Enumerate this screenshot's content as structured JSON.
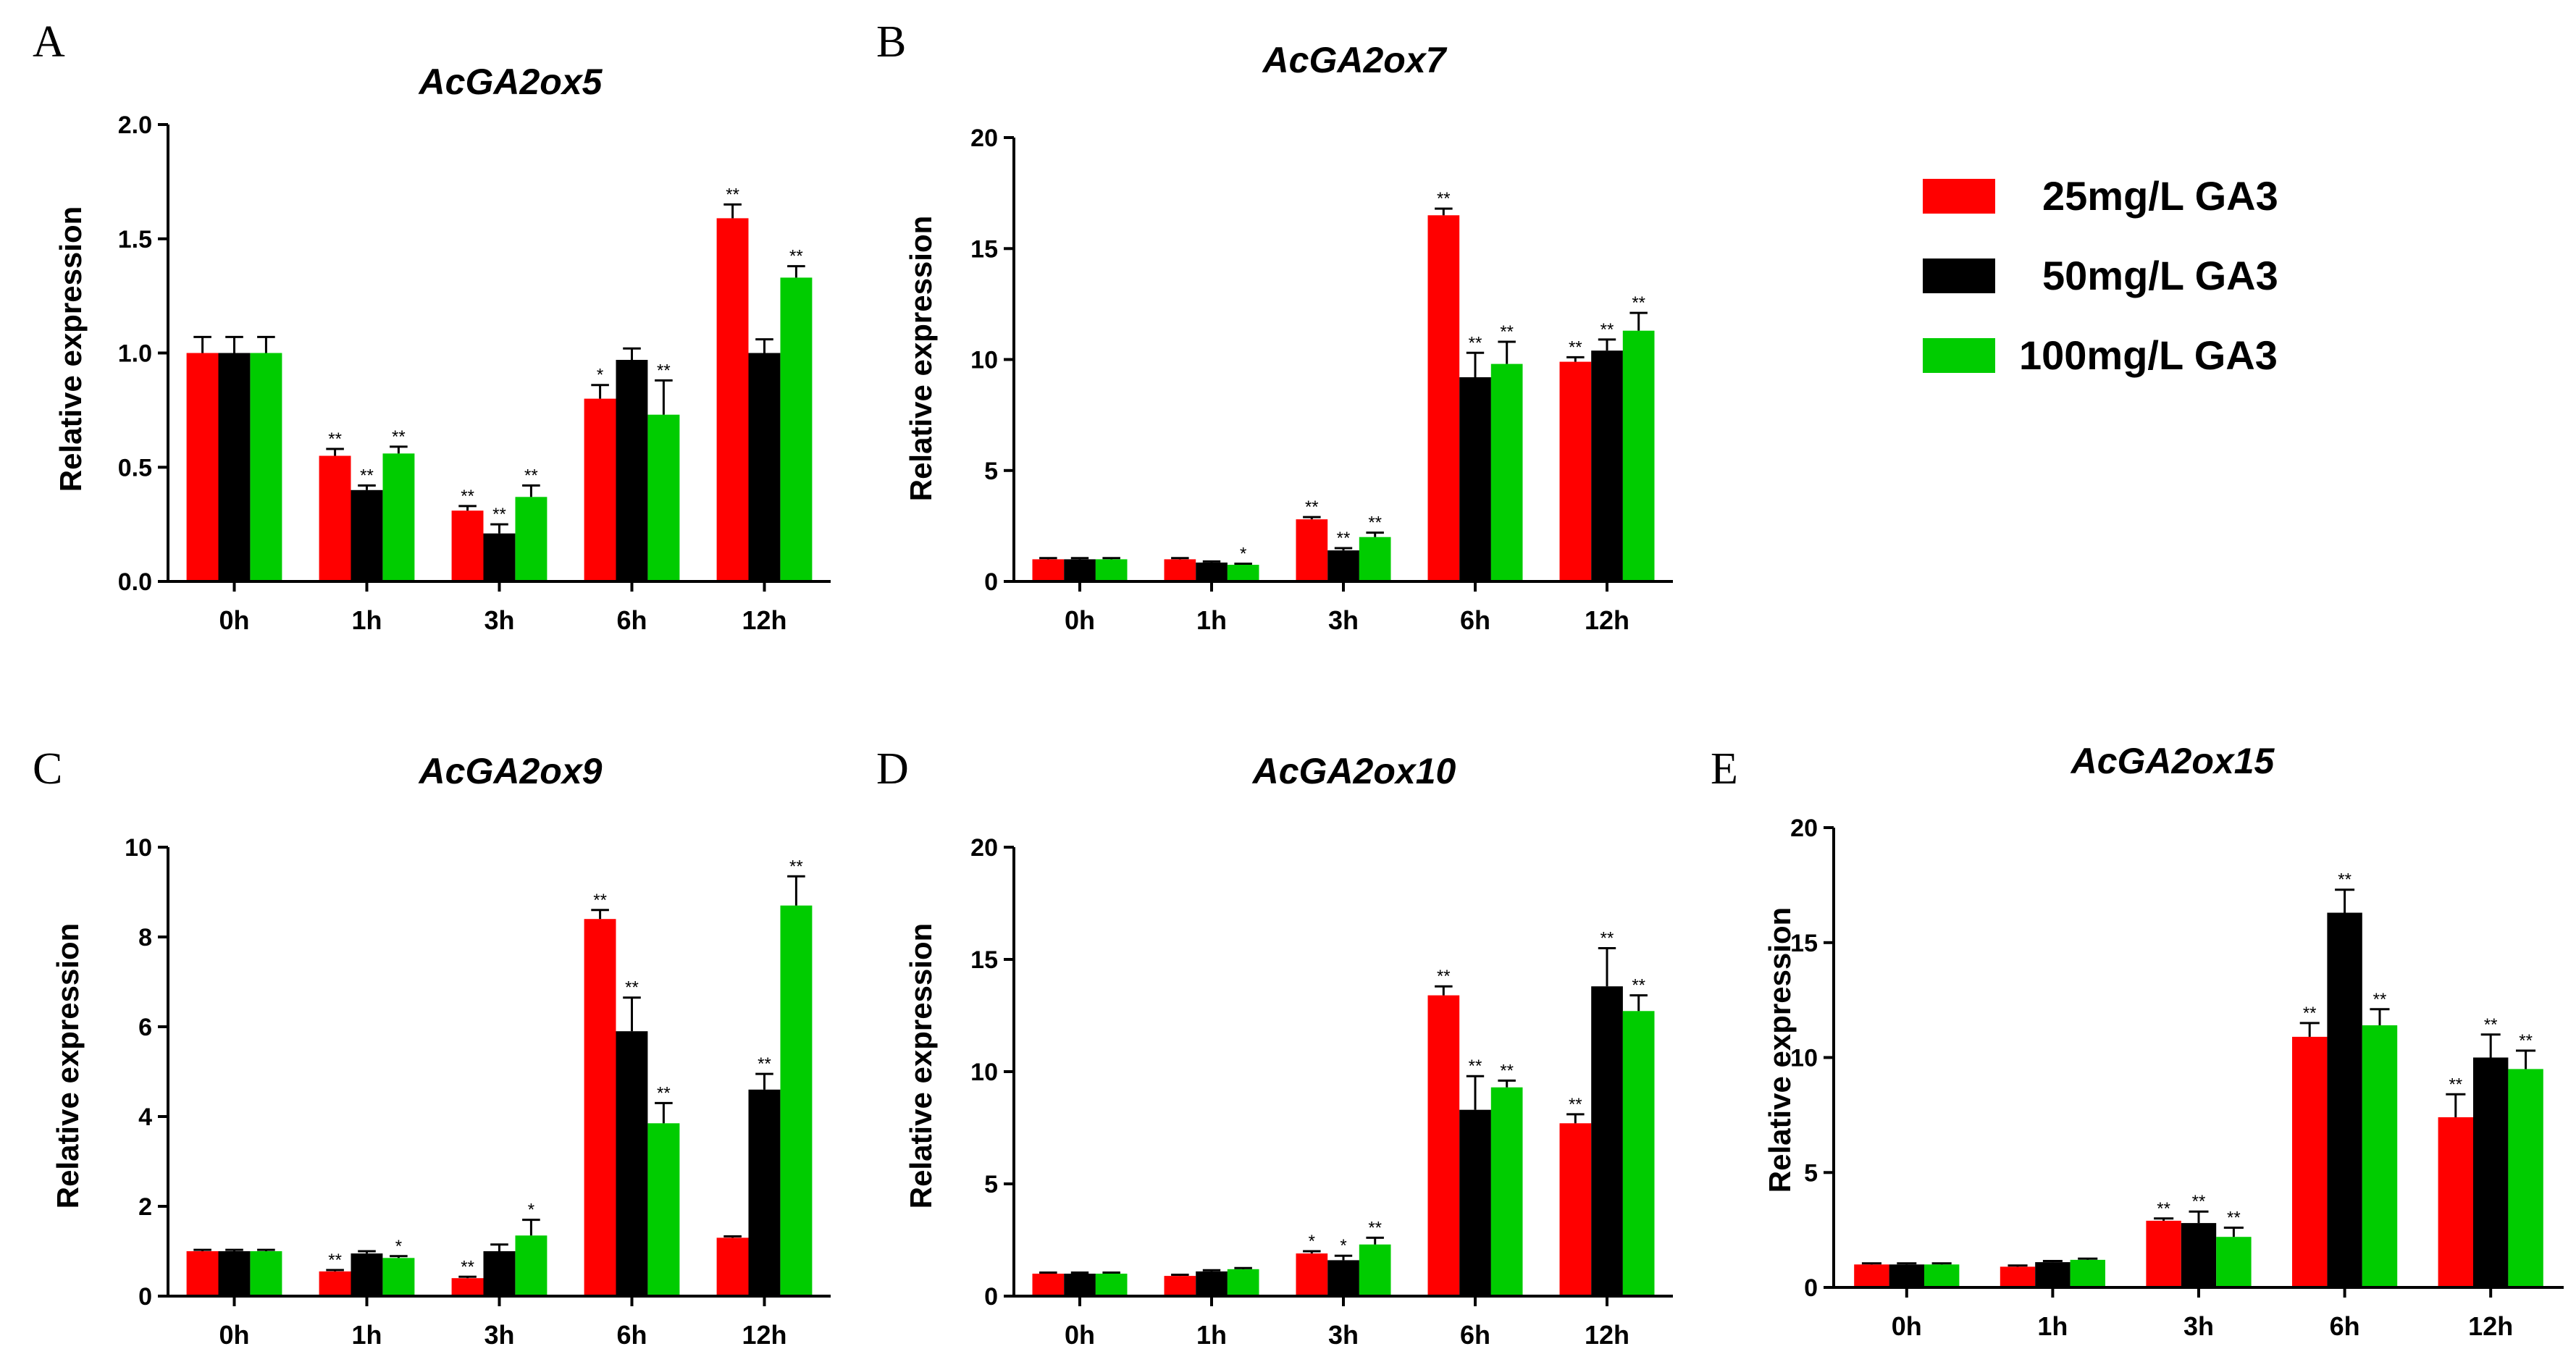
{
  "colors": {
    "series": [
      "#ff0000",
      "#000000",
      "#00cc00"
    ],
    "axis": "#000000",
    "background": "#ffffff"
  },
  "legend": {
    "items": [
      {
        "label": "25mg/L GA3",
        "color": "#ff0000"
      },
      {
        "label": "50mg/L GA3",
        "color": "#000000"
      },
      {
        "label": "100mg/L GA3",
        "color": "#00cc00"
      }
    ]
  },
  "chart_data": [
    {
      "panel": "A",
      "type": "bar",
      "title": "AcGA2ox5",
      "xlabel": "",
      "ylabel": "Relative expression",
      "categories": [
        "0h",
        "1h",
        "3h",
        "6h",
        "12h"
      ],
      "ylim": [
        0,
        2.0
      ],
      "yticks": [
        0.0,
        0.5,
        1.0,
        1.5,
        2.0
      ],
      "ytick_labels": [
        "0.0",
        "0.5",
        "1.0",
        "1.5",
        "2.0"
      ],
      "series": [
        {
          "name": "25mg/L GA3",
          "values": [
            1.0,
            0.55,
            0.31,
            0.8,
            1.59
          ],
          "errors": [
            0.07,
            0.03,
            0.02,
            0.06,
            0.06
          ],
          "sig": [
            "",
            "**",
            "**",
            "*",
            "**"
          ]
        },
        {
          "name": "50mg/L GA3",
          "values": [
            1.0,
            0.4,
            0.21,
            0.97,
            1.0
          ],
          "errors": [
            0.07,
            0.02,
            0.04,
            0.05,
            0.06
          ],
          "sig": [
            "",
            "**",
            "**",
            "",
            ""
          ]
        },
        {
          "name": "100mg/L GA3",
          "values": [
            1.0,
            0.56,
            0.37,
            0.73,
            1.33
          ],
          "errors": [
            0.07,
            0.03,
            0.05,
            0.15,
            0.05
          ],
          "sig": [
            "",
            "**",
            "**",
            "**",
            "**"
          ]
        }
      ]
    },
    {
      "panel": "B",
      "type": "bar",
      "title": "AcGA2ox7",
      "xlabel": "",
      "ylabel": "Relative expression",
      "categories": [
        "0h",
        "1h",
        "3h",
        "6h",
        "12h"
      ],
      "ylim": [
        0,
        20
      ],
      "yticks": [
        0,
        5,
        10,
        15,
        20
      ],
      "ytick_labels": [
        "0",
        "5",
        "10",
        "15",
        "20"
      ],
      "series": [
        {
          "name": "25mg/L GA3",
          "values": [
            1.0,
            1.0,
            2.8,
            16.5,
            9.9
          ],
          "errors": [
            0.05,
            0.05,
            0.1,
            0.3,
            0.2
          ],
          "sig": [
            "",
            "",
            "**",
            "**",
            "**"
          ]
        },
        {
          "name": "50mg/L GA3",
          "values": [
            1.0,
            0.85,
            1.4,
            9.2,
            10.4
          ],
          "errors": [
            0.05,
            0.05,
            0.1,
            1.1,
            0.5
          ],
          "sig": [
            "",
            "",
            "**",
            "**",
            "**"
          ]
        },
        {
          "name": "100mg/L GA3",
          "values": [
            1.0,
            0.75,
            2.0,
            9.8,
            11.3
          ],
          "errors": [
            0.05,
            0.05,
            0.2,
            1.0,
            0.8
          ],
          "sig": [
            "",
            "*",
            "**",
            "**",
            "**"
          ]
        }
      ]
    },
    {
      "panel": "C",
      "type": "bar",
      "title": "AcGA2ox9",
      "xlabel": "",
      "ylabel": "Relative expression",
      "categories": [
        "0h",
        "1h",
        "3h",
        "6h",
        "12h"
      ],
      "ylim": [
        0,
        10
      ],
      "yticks": [
        0,
        2,
        4,
        6,
        8,
        10
      ],
      "ytick_labels": [
        "0",
        "2",
        "4",
        "6",
        "8",
        "10"
      ],
      "series": [
        {
          "name": "25mg/L GA3",
          "values": [
            1.0,
            0.55,
            0.4,
            8.4,
            1.3
          ],
          "errors": [
            0.03,
            0.03,
            0.03,
            0.2,
            0.03
          ],
          "sig": [
            "",
            "**",
            "**",
            "**",
            ""
          ]
        },
        {
          "name": "50mg/L GA3",
          "values": [
            1.0,
            0.95,
            1.0,
            5.9,
            4.6
          ],
          "errors": [
            0.03,
            0.05,
            0.15,
            0.75,
            0.35
          ],
          "sig": [
            "",
            "",
            "",
            "**",
            "**"
          ]
        },
        {
          "name": "100mg/L GA3",
          "values": [
            1.0,
            0.85,
            1.35,
            3.85,
            8.7
          ],
          "errors": [
            0.03,
            0.04,
            0.35,
            0.45,
            0.65
          ],
          "sig": [
            "",
            "*",
            "*",
            "**",
            "**"
          ]
        }
      ]
    },
    {
      "panel": "D",
      "type": "bar",
      "title": "AcGA2ox10",
      "xlabel": "",
      "ylabel": "Relative expression",
      "categories": [
        "0h",
        "1h",
        "3h",
        "6h",
        "12h"
      ],
      "ylim": [
        0,
        20
      ],
      "yticks": [
        0,
        5,
        10,
        15,
        20
      ],
      "ytick_labels": [
        "0",
        "5",
        "10",
        "15",
        "20"
      ],
      "series": [
        {
          "name": "25mg/L GA3",
          "values": [
            1.0,
            0.9,
            1.9,
            13.4,
            7.7
          ],
          "errors": [
            0.05,
            0.05,
            0.1,
            0.4,
            0.4
          ],
          "sig": [
            "",
            "",
            "*",
            "**",
            "**"
          ]
        },
        {
          "name": "50mg/L GA3",
          "values": [
            1.0,
            1.1,
            1.6,
            8.3,
            13.8
          ],
          "errors": [
            0.05,
            0.05,
            0.2,
            1.5,
            1.7
          ],
          "sig": [
            "",
            "",
            "*",
            "**",
            "**"
          ]
        },
        {
          "name": "100mg/L GA3",
          "values": [
            1.0,
            1.2,
            2.3,
            9.3,
            12.7
          ],
          "errors": [
            0.05,
            0.05,
            0.3,
            0.3,
            0.7
          ],
          "sig": [
            "",
            "",
            "**",
            "**",
            "**"
          ]
        }
      ]
    },
    {
      "panel": "E",
      "type": "bar",
      "title": "AcGA2ox15",
      "xlabel": "",
      "ylabel": "Relative expression",
      "categories": [
        "0h",
        "1h",
        "3h",
        "6h",
        "12h"
      ],
      "ylim": [
        0,
        20
      ],
      "yticks": [
        0,
        5,
        10,
        15,
        20
      ],
      "ytick_labels": [
        "0",
        "5",
        "10",
        "15",
        "20"
      ],
      "series": [
        {
          "name": "25mg/L GA3",
          "values": [
            1.0,
            0.9,
            2.9,
            10.9,
            7.4
          ],
          "errors": [
            0.05,
            0.05,
            0.1,
            0.6,
            1.0
          ],
          "sig": [
            "",
            "",
            "**",
            "**",
            "**"
          ]
        },
        {
          "name": "50mg/L GA3",
          "values": [
            1.0,
            1.1,
            2.8,
            16.3,
            10.0
          ],
          "errors": [
            0.05,
            0.05,
            0.5,
            1.0,
            1.0
          ],
          "sig": [
            "",
            "",
            "**",
            "**",
            "**"
          ]
        },
        {
          "name": "100mg/L GA3",
          "values": [
            1.0,
            1.2,
            2.2,
            11.4,
            9.5
          ],
          "errors": [
            0.05,
            0.05,
            0.4,
            0.7,
            0.8
          ],
          "sig": [
            "",
            "",
            "**",
            "**",
            "**"
          ]
        }
      ]
    }
  ]
}
